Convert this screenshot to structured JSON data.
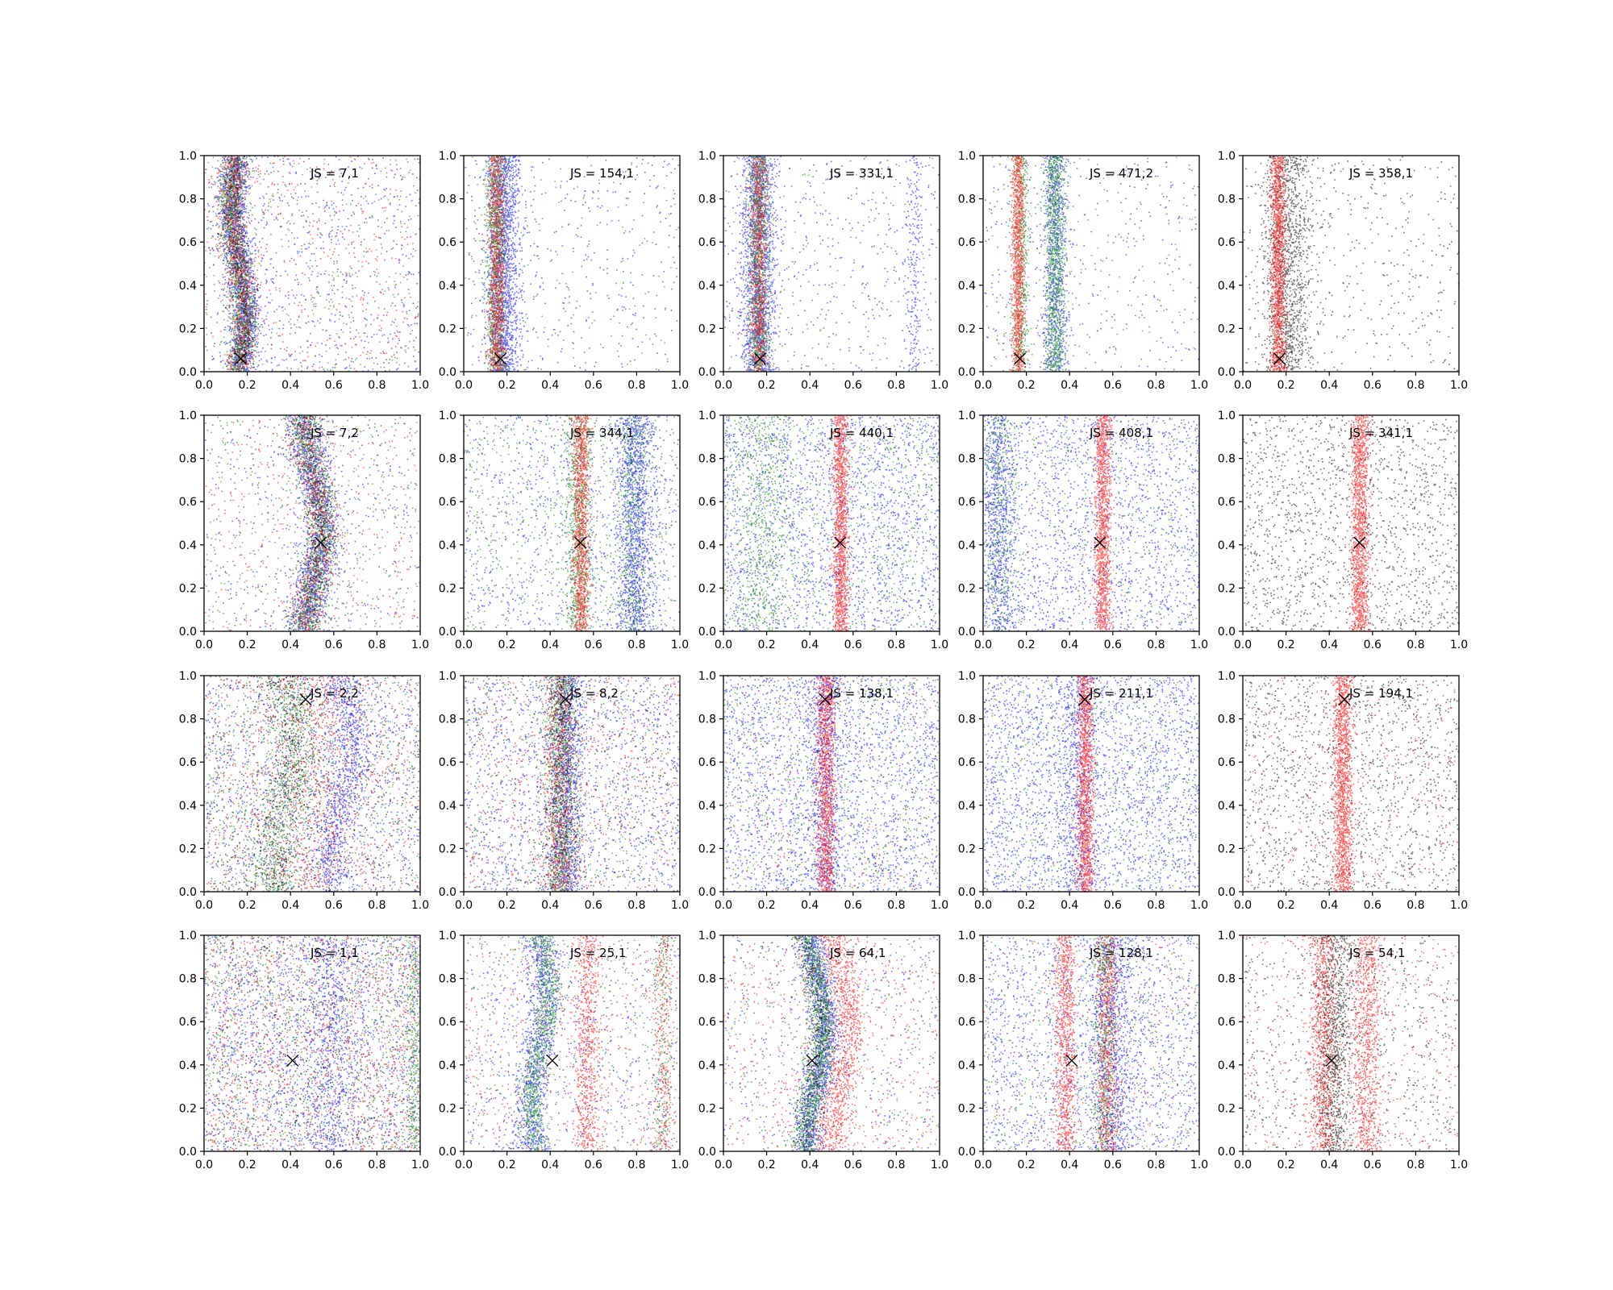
{
  "chart_data": {
    "type": "scatter",
    "layout": {
      "rows": 4,
      "cols": 5
    },
    "xlim": [
      0,
      1
    ],
    "ylim": [
      0,
      1
    ],
    "xticks": [
      "0.0",
      "0.2",
      "0.4",
      "0.6",
      "0.8",
      "1.0"
    ],
    "yticks": [
      "0.0",
      "0.2",
      "0.4",
      "0.6",
      "0.8",
      "1.0"
    ],
    "grid": false,
    "colors": {
      "blue": "#0000ff",
      "green": "#008000",
      "red": "#ff0000",
      "black": "#000000"
    },
    "marker": "x",
    "panels": [
      {
        "row": 0,
        "col": 0,
        "label": "JS = 7,1",
        "marker_xy": [
          0.17,
          0.06
        ],
        "bands": [
          {
            "color": "blue",
            "center": 0.16,
            "width": 0.035,
            "n": 1700,
            "slope": 0.03
          },
          {
            "color": "green",
            "center": 0.15,
            "width": 0.03,
            "n": 1300,
            "slope": 0.03
          },
          {
            "color": "red",
            "center": 0.15,
            "width": 0.03,
            "n": 900,
            "slope": 0.03
          },
          {
            "color": "black",
            "center": 0.16,
            "width": 0.025,
            "n": 500,
            "slope": 0.03
          }
        ],
        "noise": [
          {
            "color": "blue",
            "n": 700
          },
          {
            "color": "red",
            "n": 500
          },
          {
            "color": "green",
            "n": 300
          }
        ]
      },
      {
        "row": 0,
        "col": 1,
        "label": "JS = 154,1",
        "marker_xy": [
          0.17,
          0.06
        ],
        "bands": [
          {
            "color": "blue",
            "center": 0.18,
            "width": 0.04,
            "n": 1700,
            "slope": 0.0
          },
          {
            "color": "green",
            "center": 0.15,
            "width": 0.025,
            "n": 1100,
            "slope": 0.0
          },
          {
            "color": "red",
            "center": 0.15,
            "width": 0.02,
            "n": 1100,
            "slope": 0.0
          }
        ],
        "noise": [
          {
            "color": "blue",
            "n": 400
          },
          {
            "color": "green",
            "n": 150
          }
        ]
      },
      {
        "row": 0,
        "col": 2,
        "label": "JS = 331,1",
        "marker_xy": [
          0.17,
          0.06
        ],
        "bands": [
          {
            "color": "blue",
            "center": 0.16,
            "width": 0.04,
            "n": 1700,
            "slope": 0.0
          },
          {
            "color": "green",
            "center": 0.16,
            "width": 0.025,
            "n": 1100,
            "slope": 0.0
          },
          {
            "color": "red",
            "center": 0.16,
            "width": 0.02,
            "n": 900,
            "slope": 0.0
          },
          {
            "color": "blue",
            "center": 0.88,
            "width": 0.02,
            "n": 200,
            "slope": 0.0
          }
        ],
        "noise": [
          {
            "color": "blue",
            "n": 450
          },
          {
            "color": "green",
            "n": 120
          }
        ]
      },
      {
        "row": 0,
        "col": 3,
        "label": "JS = 471,2",
        "marker_xy": [
          0.17,
          0.06
        ],
        "bands": [
          {
            "color": "blue",
            "center": 0.33,
            "width": 0.03,
            "n": 800,
            "slope": 0.0
          },
          {
            "color": "green",
            "center": 0.33,
            "width": 0.025,
            "n": 1100,
            "slope": 0.0
          },
          {
            "color": "green",
            "center": 0.17,
            "width": 0.02,
            "n": 600,
            "slope": 0.0
          },
          {
            "color": "red",
            "center": 0.16,
            "width": 0.015,
            "n": 1200,
            "slope": 0.0
          }
        ],
        "noise": [
          {
            "color": "blue",
            "n": 350
          },
          {
            "color": "green",
            "n": 150
          }
        ]
      },
      {
        "row": 0,
        "col": 4,
        "label": "JS = 358,1",
        "marker_xy": [
          0.17,
          0.06
        ],
        "bands": [
          {
            "color": "black",
            "center": 0.2,
            "width": 0.055,
            "n": 1400,
            "slope": 0.0
          },
          {
            "color": "red",
            "center": 0.16,
            "width": 0.018,
            "n": 1500,
            "slope": 0.0
          }
        ],
        "noise": [
          {
            "color": "black",
            "n": 450
          }
        ]
      },
      {
        "row": 1,
        "col": 0,
        "label": "JS = 7,2",
        "marker_xy": [
          0.54,
          0.41
        ],
        "bands": [
          {
            "color": "blue",
            "center": 0.5,
            "width": 0.045,
            "n": 1500,
            "slope": 0.04
          },
          {
            "color": "green",
            "center": 0.5,
            "width": 0.04,
            "n": 1100,
            "slope": 0.04
          },
          {
            "color": "red",
            "center": 0.5,
            "width": 0.04,
            "n": 700,
            "slope": 0.04
          },
          {
            "color": "black",
            "center": 0.5,
            "width": 0.035,
            "n": 400,
            "slope": 0.04
          }
        ],
        "noise": [
          {
            "color": "blue",
            "n": 500
          },
          {
            "color": "red",
            "n": 400
          },
          {
            "color": "green",
            "n": 300
          }
        ]
      },
      {
        "row": 1,
        "col": 1,
        "label": "JS = 344,1",
        "marker_xy": [
          0.54,
          0.41
        ],
        "bands": [
          {
            "color": "blue",
            "center": 0.79,
            "width": 0.045,
            "n": 1300,
            "slope": 0.0
          },
          {
            "color": "green",
            "center": 0.78,
            "width": 0.035,
            "n": 500,
            "slope": 0.0
          },
          {
            "color": "green",
            "center": 0.53,
            "width": 0.03,
            "n": 800,
            "slope": 0.0
          },
          {
            "color": "red",
            "center": 0.54,
            "width": 0.02,
            "n": 1200,
            "slope": 0.0
          }
        ],
        "noise": [
          {
            "color": "blue",
            "n": 900
          },
          {
            "color": "green",
            "n": 700
          }
        ]
      },
      {
        "row": 1,
        "col": 2,
        "label": "JS = 440,1",
        "marker_xy": [
          0.54,
          0.41
        ],
        "bands": [
          {
            "color": "green",
            "center": 0.18,
            "width": 0.06,
            "n": 500,
            "slope": 0.0
          },
          {
            "color": "red",
            "center": 0.54,
            "width": 0.018,
            "n": 1400,
            "slope": 0.0
          }
        ],
        "noise": [
          {
            "color": "blue",
            "n": 2000
          },
          {
            "color": "green",
            "n": 900
          }
        ]
      },
      {
        "row": 1,
        "col": 3,
        "label": "JS = 408,1",
        "marker_xy": [
          0.54,
          0.41
        ],
        "bands": [
          {
            "color": "blue",
            "center": 0.07,
            "width": 0.04,
            "n": 700,
            "slope": 0.0
          },
          {
            "color": "green",
            "center": 0.07,
            "width": 0.04,
            "n": 400,
            "slope": 0.0
          },
          {
            "color": "red",
            "center": 0.55,
            "width": 0.018,
            "n": 1400,
            "slope": 0.0
          }
        ],
        "noise": [
          {
            "color": "blue",
            "n": 1800
          },
          {
            "color": "green",
            "n": 400
          }
        ]
      },
      {
        "row": 1,
        "col": 4,
        "label": "JS = 341,1",
        "marker_xy": [
          0.54,
          0.41
        ],
        "bands": [
          {
            "color": "red",
            "center": 0.54,
            "width": 0.02,
            "n": 1500,
            "slope": 0.0
          }
        ],
        "noise": [
          {
            "color": "black",
            "n": 1600
          }
        ]
      },
      {
        "row": 2,
        "col": 0,
        "label": "JS = 2,2",
        "marker_xy": [
          0.47,
          0.89
        ],
        "bands": [
          {
            "color": "blue",
            "center": 0.63,
            "width": 0.05,
            "n": 900,
            "slope": 0.05
          },
          {
            "color": "green",
            "center": 0.37,
            "width": 0.06,
            "n": 700,
            "slope": 0.05
          },
          {
            "color": "black",
            "center": 0.37,
            "width": 0.06,
            "n": 500,
            "slope": 0.05
          },
          {
            "color": "red",
            "center": 0.5,
            "width": 0.12,
            "n": 600,
            "slope": 0.0
          }
        ],
        "noise": [
          {
            "color": "blue",
            "n": 1200
          },
          {
            "color": "green",
            "n": 700
          },
          {
            "color": "red",
            "n": 700
          },
          {
            "color": "black",
            "n": 500
          }
        ]
      },
      {
        "row": 2,
        "col": 1,
        "label": "JS = 8,2",
        "marker_xy": [
          0.47,
          0.89
        ],
        "bands": [
          {
            "color": "blue",
            "center": 0.47,
            "width": 0.04,
            "n": 1100,
            "slope": 0.0
          },
          {
            "color": "green",
            "center": 0.45,
            "width": 0.04,
            "n": 900,
            "slope": 0.0
          },
          {
            "color": "red",
            "center": 0.44,
            "width": 0.04,
            "n": 700,
            "slope": 0.0
          },
          {
            "color": "black",
            "center": 0.45,
            "width": 0.04,
            "n": 400,
            "slope": 0.0
          }
        ],
        "noise": [
          {
            "color": "blue",
            "n": 1300
          },
          {
            "color": "red",
            "n": 600
          },
          {
            "color": "green",
            "n": 400
          },
          {
            "color": "black",
            "n": 300
          }
        ]
      },
      {
        "row": 2,
        "col": 2,
        "label": "JS = 138,1",
        "marker_xy": [
          0.47,
          0.89
        ],
        "bands": [
          {
            "color": "blue",
            "center": 0.47,
            "width": 0.04,
            "n": 700,
            "slope": 0.0
          },
          {
            "color": "red",
            "center": 0.47,
            "width": 0.022,
            "n": 1300,
            "slope": 0.0
          }
        ],
        "noise": [
          {
            "color": "blue",
            "n": 2000
          },
          {
            "color": "green",
            "n": 700
          },
          {
            "color": "red",
            "n": 200
          }
        ]
      },
      {
        "row": 2,
        "col": 3,
        "label": "JS = 211,1",
        "marker_xy": [
          0.47,
          0.89
        ],
        "bands": [
          {
            "color": "blue",
            "center": 0.44,
            "width": 0.05,
            "n": 600,
            "slope": 0.0
          },
          {
            "color": "red",
            "center": 0.47,
            "width": 0.02,
            "n": 1400,
            "slope": 0.0
          }
        ],
        "noise": [
          {
            "color": "blue",
            "n": 2200
          },
          {
            "color": "green",
            "n": 600
          }
        ]
      },
      {
        "row": 2,
        "col": 4,
        "label": "JS = 194,1",
        "marker_xy": [
          0.47,
          0.89
        ],
        "bands": [
          {
            "color": "red",
            "center": 0.46,
            "width": 0.022,
            "n": 1500,
            "slope": 0.0
          }
        ],
        "noise": [
          {
            "color": "black",
            "n": 1400
          },
          {
            "color": "red",
            "n": 400
          }
        ]
      },
      {
        "row": 3,
        "col": 0,
        "label": "JS = 1,1",
        "marker_xy": [
          0.41,
          0.42
        ],
        "bands": [
          {
            "color": "blue",
            "center": 0.58,
            "width": 0.06,
            "n": 500,
            "slope": 0.0
          },
          {
            "color": "green",
            "center": 0.97,
            "width": 0.02,
            "n": 300,
            "slope": 0.0
          }
        ],
        "noise": [
          {
            "color": "blue",
            "n": 1800
          },
          {
            "color": "red",
            "n": 1300
          },
          {
            "color": "green",
            "n": 1000
          },
          {
            "color": "black",
            "n": 500
          }
        ]
      },
      {
        "row": 3,
        "col": 1,
        "label": "JS = 25,1",
        "marker_xy": [
          0.41,
          0.42
        ],
        "bands": [
          {
            "color": "blue",
            "center": 0.34,
            "width": 0.04,
            "n": 1000,
            "slope": 0.04
          },
          {
            "color": "green",
            "center": 0.35,
            "width": 0.03,
            "n": 900,
            "slope": 0.04
          },
          {
            "color": "red",
            "center": 0.57,
            "width": 0.03,
            "n": 700,
            "slope": 0.0
          },
          {
            "color": "red",
            "center": 0.92,
            "width": 0.025,
            "n": 300,
            "slope": 0.0
          },
          {
            "color": "green",
            "center": 0.92,
            "width": 0.025,
            "n": 200,
            "slope": 0.0
          }
        ],
        "noise": [
          {
            "color": "blue",
            "n": 700
          },
          {
            "color": "red",
            "n": 500
          },
          {
            "color": "green",
            "n": 300
          }
        ]
      },
      {
        "row": 3,
        "col": 2,
        "label": "JS = 64,1",
        "marker_xy": [
          0.41,
          0.42
        ],
        "bands": [
          {
            "color": "blue",
            "center": 0.43,
            "width": 0.035,
            "n": 1400,
            "slope": 0.04
          },
          {
            "color": "green",
            "center": 0.42,
            "width": 0.03,
            "n": 1200,
            "slope": 0.04
          },
          {
            "color": "red",
            "center": 0.54,
            "width": 0.04,
            "n": 1000,
            "slope": 0.04
          },
          {
            "color": "black",
            "center": 0.41,
            "width": 0.025,
            "n": 400,
            "slope": 0.04
          }
        ],
        "noise": [
          {
            "color": "blue",
            "n": 500
          },
          {
            "color": "red",
            "n": 600
          },
          {
            "color": "green",
            "n": 200
          }
        ]
      },
      {
        "row": 3,
        "col": 3,
        "label": "JS = 128,1",
        "marker_xy": [
          0.41,
          0.42
        ],
        "bands": [
          {
            "color": "red",
            "center": 0.38,
            "width": 0.025,
            "n": 900,
            "slope": 0.0
          },
          {
            "color": "red",
            "center": 0.57,
            "width": 0.025,
            "n": 900,
            "slope": 0.0
          },
          {
            "color": "green",
            "center": 0.56,
            "width": 0.03,
            "n": 500,
            "slope": 0.0
          },
          {
            "color": "blue",
            "center": 0.6,
            "width": 0.06,
            "n": 800,
            "slope": 0.0
          }
        ],
        "noise": [
          {
            "color": "blue",
            "n": 1500
          },
          {
            "color": "green",
            "n": 500
          },
          {
            "color": "red",
            "n": 200
          }
        ]
      },
      {
        "row": 3,
        "col": 4,
        "label": "JS = 54,1",
        "marker_xy": [
          0.41,
          0.42
        ],
        "bands": [
          {
            "color": "black",
            "center": 0.42,
            "width": 0.04,
            "n": 1000,
            "slope": 0.0
          },
          {
            "color": "red",
            "center": 0.37,
            "width": 0.035,
            "n": 900,
            "slope": 0.0
          },
          {
            "color": "red",
            "center": 0.57,
            "width": 0.035,
            "n": 900,
            "slope": 0.0
          }
        ],
        "noise": [
          {
            "color": "black",
            "n": 700
          },
          {
            "color": "red",
            "n": 500
          }
        ]
      }
    ]
  }
}
